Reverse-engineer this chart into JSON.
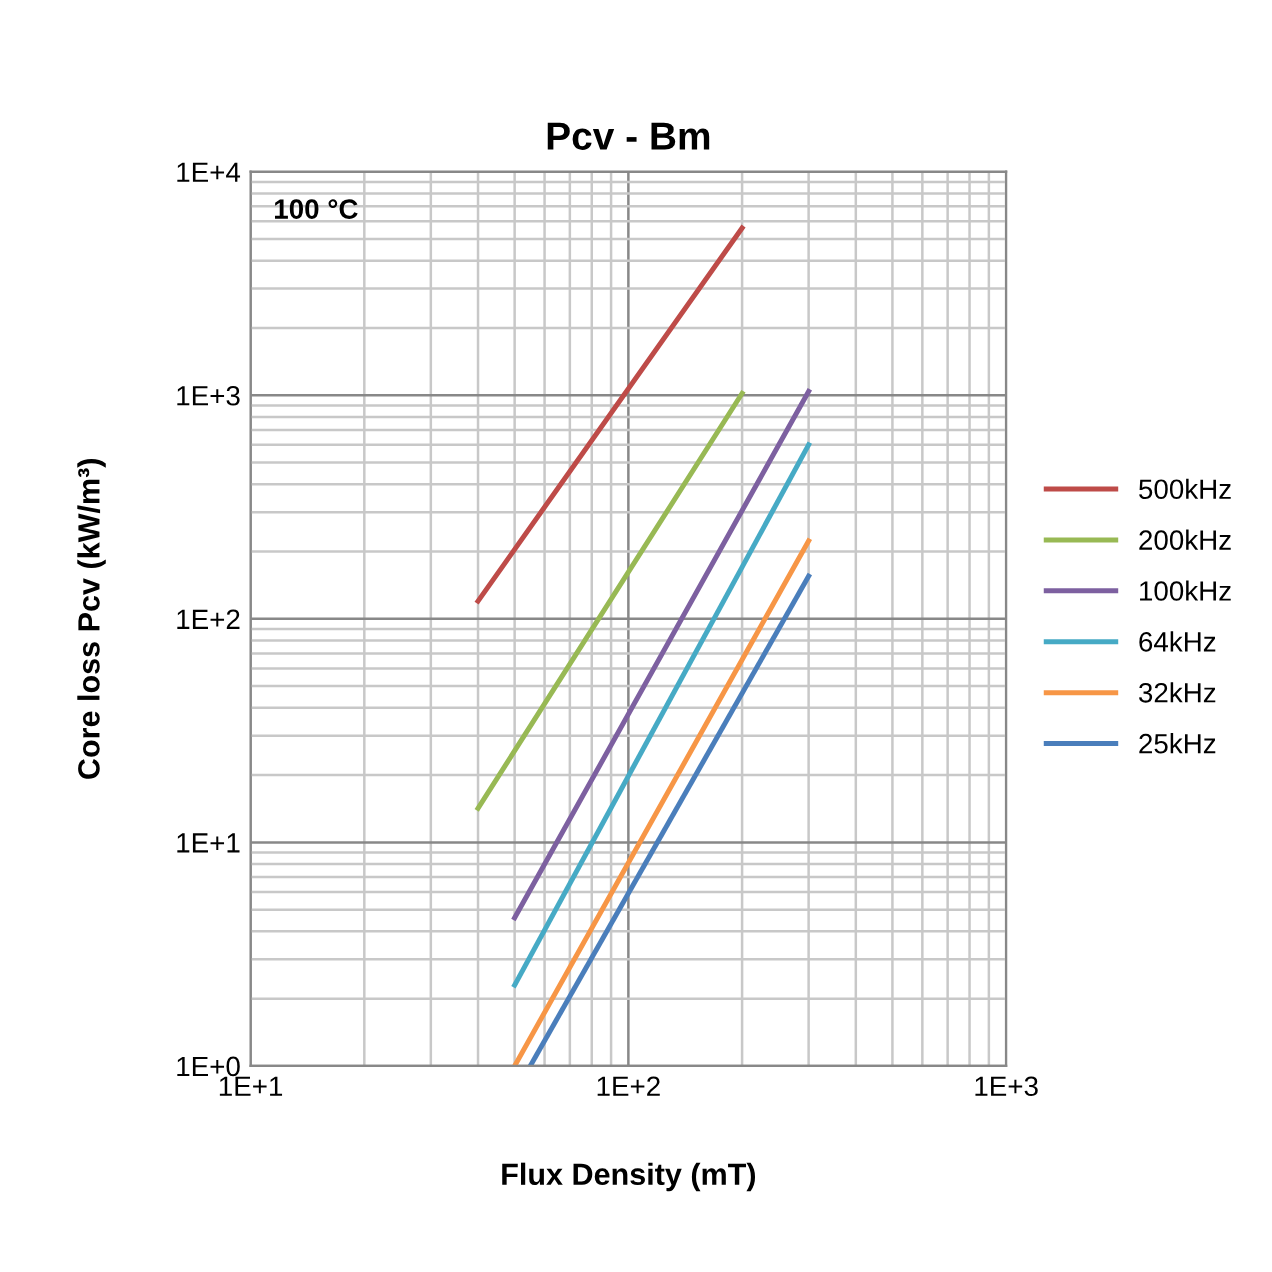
{
  "chart_data": {
    "type": "line",
    "title": "Pcv - Bm",
    "xlabel": "Flux Density (mT)",
    "ylabel": "Core loss Pcv (kW/m³)",
    "annotations": [
      "100 °C"
    ],
    "log": "xy",
    "grid": true,
    "legend": "right",
    "marker": "none",
    "line_style": "solid",
    "xlim": [
      10,
      1000
    ],
    "xticks": [
      {
        "value": 10,
        "label": "1E+1"
      },
      {
        "value": 100,
        "label": "1E+2"
      },
      {
        "value": 1000,
        "label": "1E+3"
      }
    ],
    "ylim": [
      1,
      10000
    ],
    "yticks": [
      {
        "value": 1,
        "label": "1E+0"
      },
      {
        "value": 10,
        "label": "1E+1"
      },
      {
        "value": 100,
        "label": "1E+2"
      },
      {
        "value": 1000,
        "label": "1E+3"
      },
      {
        "value": 10000,
        "label": "1E+4"
      }
    ],
    "series": [
      {
        "name": "500kHz",
        "color": "#be4b48",
        "x": [
          40,
          200
        ],
        "values": [
          120,
          5600
        ]
      },
      {
        "name": "200kHz",
        "color": "#98b954",
        "x": [
          40,
          200
        ],
        "values": [
          14.2,
          1020
        ]
      },
      {
        "name": "100kHz",
        "color": "#7d60a0",
        "x": [
          50,
          300
        ],
        "values": [
          4.6,
          1040
        ]
      },
      {
        "name": "64kHz",
        "color": "#46aac5",
        "x": [
          50,
          300
        ],
        "values": [
          2.3,
          600
        ]
      },
      {
        "name": "32kHz",
        "color": "#f79646",
        "x": [
          50,
          300
        ],
        "values": [
          1.0,
          223
        ]
      },
      {
        "name": "25kHz",
        "color": "#4a7ebb",
        "x": [
          55,
          300
        ],
        "values": [
          1.0,
          155
        ]
      }
    ]
  }
}
